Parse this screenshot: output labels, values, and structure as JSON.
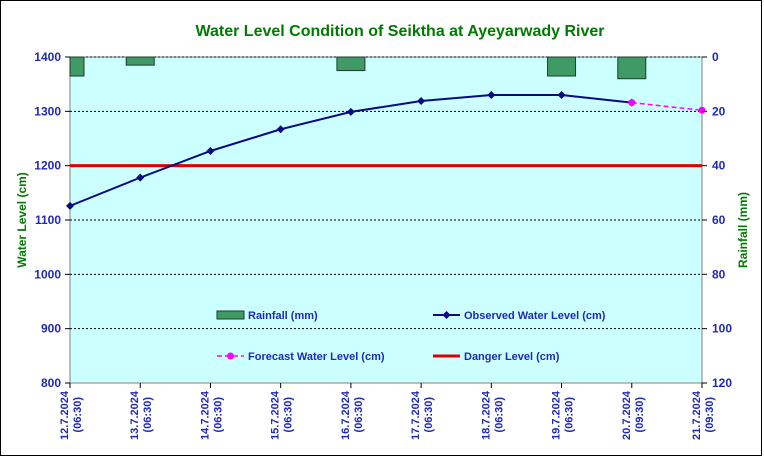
{
  "chart_data": {
    "type": "line",
    "title": "Water Level Condition of Seiktha at Ayeyarwady River",
    "ylabel": "Water Level (cm)",
    "y2label": "Rainfall (mm)",
    "ylim": [
      800,
      1400
    ],
    "y2lim": [
      0,
      120
    ],
    "y2_reversed": true,
    "yticks": [
      "800",
      "900",
      "1000",
      "1100",
      "1200",
      "1300",
      "1400"
    ],
    "y2ticks": [
      "0",
      "20",
      "40",
      "60",
      "80",
      "100",
      "120"
    ],
    "grid": "horizontal dotted",
    "categories": [
      [
        "12.7.2024",
        "(06:30)"
      ],
      [
        "13.7.2024",
        "(06:30)"
      ],
      [
        "14.7.2024",
        "(06:30)"
      ],
      [
        "15.7.2024",
        "(06:30)"
      ],
      [
        "16.7.2024",
        "(06:30)"
      ],
      [
        "17.7.2024",
        "(06:30)"
      ],
      [
        "18.7.2024",
        "(06:30)"
      ],
      [
        "19.7.2024",
        "(06:30)"
      ],
      [
        "20.7.2024",
        "(09:30)"
      ],
      [
        "21.7.2024",
        "(09:30)"
      ]
    ],
    "series": [
      {
        "name": "Rainfall (mm)",
        "kind": "bar",
        "axis": "right",
        "color": "#3f9a66",
        "values": [
          7,
          3,
          0,
          0,
          5,
          0,
          0,
          7,
          8,
          0
        ]
      },
      {
        "name": "Observed Water Level (cm)",
        "kind": "line",
        "axis": "left",
        "color": "#0a0a80",
        "values": [
          1126,
          1178,
          1227,
          1267,
          1299,
          1319,
          1330,
          1330,
          1316,
          null
        ]
      },
      {
        "name": "Forecast Water Level (cm)",
        "kind": "dashed-line",
        "axis": "left",
        "color": "#ff00ff",
        "values": [
          null,
          null,
          null,
          null,
          null,
          null,
          null,
          null,
          1316,
          1302
        ]
      },
      {
        "name": "Danger Level (cm)",
        "kind": "constant-line",
        "axis": "left",
        "color": "#e00000",
        "value": 1200
      }
    ],
    "legend_placement": "inside-bottom"
  }
}
